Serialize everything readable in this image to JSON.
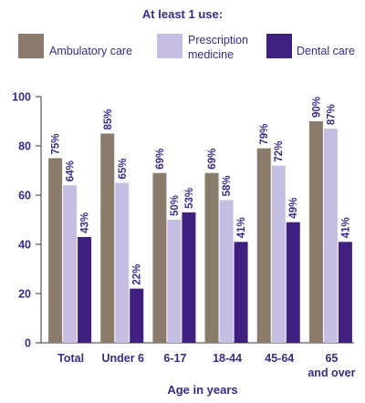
{
  "chart_data": {
    "type": "bar",
    "legend_title": "At least 1 use:",
    "series": [
      {
        "name": "Ambulatory care",
        "color": "#8b7b6a",
        "values": [
          75,
          85,
          69,
          69,
          79,
          90
        ]
      },
      {
        "name": "Prescription medicine",
        "name_lines": [
          "Prescription",
          "medicine"
        ],
        "color": "#c5bde2",
        "values": [
          64,
          65,
          50,
          58,
          72,
          87
        ]
      },
      {
        "name": "Dental care",
        "color": "#3f1f80",
        "values": [
          43,
          22,
          53,
          41,
          49,
          41
        ]
      }
    ],
    "categories": [
      "Total",
      "Under 6",
      "6-17",
      "18-44",
      "45-64",
      "65 and over"
    ],
    "category_lines": [
      [
        "Total"
      ],
      [
        "Under 6"
      ],
      [
        "6-17"
      ],
      [
        "18-44"
      ],
      [
        "45-64"
      ],
      [
        "65",
        "and over"
      ]
    ],
    "value_suffix": "%",
    "xlabel": "Age in years",
    "ylabel": "",
    "ylim": [
      0,
      100
    ],
    "yticks": [
      0,
      20,
      40,
      60,
      80,
      100
    ],
    "grid": false,
    "legend_position": "top",
    "text_color": "#3a2a8a"
  }
}
